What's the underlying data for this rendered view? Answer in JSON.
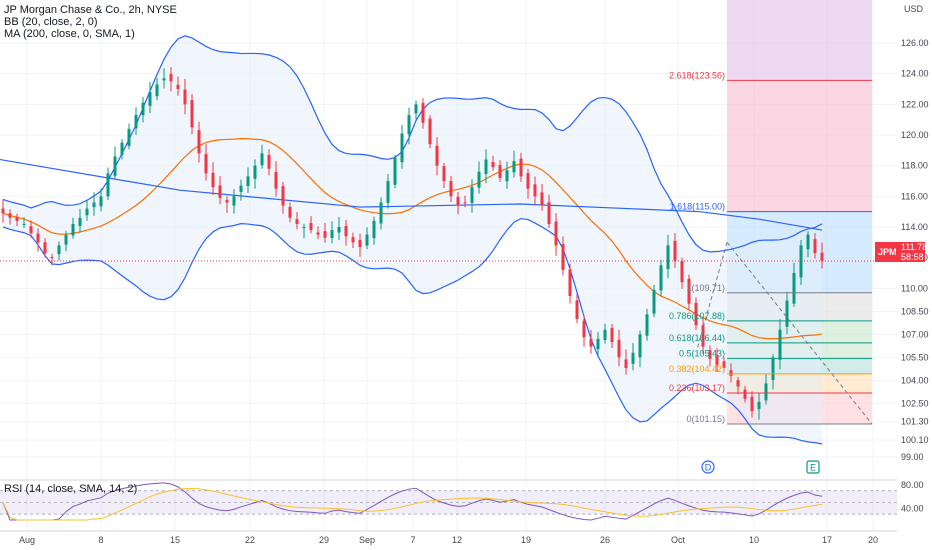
{
  "header": {
    "title": "JP Morgan Chase & Co., 2h, NYSE",
    "indicators": [
      "BB (20, close, 2, 0)",
      "MA (200, close, 0, SMA, 1)"
    ]
  },
  "rsi": {
    "label": "RSI (14, close, SMA, 14, 2)",
    "ticks": [
      "80.00",
      "40.00"
    ],
    "range": [
      20,
      85
    ]
  },
  "price_badge": {
    "symbol": "JPM",
    "value": "111.78",
    "time": "58:58",
    "color": "#f23645"
  },
  "colors": {
    "up": "#089981",
    "down": "#f23645",
    "bb": "#2962ff",
    "bb_fill": "#e3effa",
    "ma": "#2962ff",
    "basis": "#ff6d00",
    "rsi": "#7e57c2",
    "rsi_ma": "#fbc02d"
  },
  "chart_data": {
    "type": "candlestick",
    "currency": "USD",
    "yaxis_ticks": [
      "126.00",
      "124.00",
      "122.00",
      "120.00",
      "118.00",
      "116.00",
      "114.00",
      "112.00",
      "110.00",
      "108.50",
      "107.00",
      "105.50",
      "104.00",
      "102.50",
      "101.30",
      "100.10",
      "99.00"
    ],
    "xaxis_ticks": [
      "Aug",
      "8",
      "15",
      "22",
      "29",
      "Sep",
      "7",
      "12",
      "19",
      "26",
      "Oct",
      "10",
      "17",
      "20"
    ],
    "fibonacci": [
      {
        "label": "2.618(123.56)",
        "level": 123.56,
        "color": "#f23645"
      },
      {
        "label": "1.618(115.00)",
        "level": 115.0,
        "color": "#2962ff"
      },
      {
        "label": "1(109.71)",
        "level": 109.71,
        "color": "#787b86"
      },
      {
        "label": "0.786(107.88)",
        "level": 107.88,
        "color": "#089981"
      },
      {
        "label": "0.618(106.44)",
        "level": 106.44,
        "color": "#089981"
      },
      {
        "label": "0.5(105.43)",
        "level": 105.43,
        "color": "#089981"
      },
      {
        "label": "0.382(104.42)",
        "level": 104.42,
        "color": "#ff9800"
      },
      {
        "label": "0.236(103.17)",
        "level": 103.17,
        "color": "#f23645"
      },
      {
        "label": "0(101.15)",
        "level": 101.15,
        "color": "#787b86"
      }
    ],
    "markers": [
      {
        "label": "D",
        "color": "#2962ff"
      },
      {
        "label": "E",
        "color": "#089981"
      }
    ],
    "close_series": [
      114.9,
      114.6,
      114.4,
      114.2,
      113.6,
      113.0,
      112.3,
      112.0,
      112.8,
      113.5,
      114.2,
      114.6,
      115.2,
      115.6,
      116.0,
      117.5,
      118.6,
      119.5,
      120.4,
      121.3,
      122.1,
      122.8,
      123.3,
      123.7,
      123.5,
      123.0,
      122.0,
      120.5,
      118.8,
      117.5,
      116.6,
      115.9,
      115.6,
      116.0,
      116.7,
      117.3,
      118.0,
      118.8,
      117.8,
      116.5,
      115.4,
      114.6,
      114.2,
      114.0,
      113.8,
      113.5,
      113.3,
      113.8,
      114.0,
      113.4,
      113.0,
      112.7,
      113.5,
      114.4,
      115.6,
      117.0,
      118.5,
      120.1,
      121.3,
      122.0,
      120.8,
      119.4,
      118.0,
      117.0,
      116.0,
      115.4,
      115.6,
      116.6,
      117.6,
      118.4,
      117.9,
      117.2,
      117.7,
      118.3,
      117.3,
      116.5,
      116.0,
      115.4,
      114.2,
      112.8,
      111.2,
      109.5,
      108.0,
      106.8,
      106.2,
      106.7,
      107.3,
      106.5,
      105.5,
      104.8,
      105.8,
      107.0,
      108.3,
      109.9,
      111.5,
      112.8,
      111.8,
      110.4,
      109.0,
      107.6,
      106.2,
      105.4,
      105.0,
      104.8,
      104.3,
      103.6,
      102.8,
      102.0,
      102.6,
      103.8,
      105.5,
      107.3,
      109.2,
      111.0,
      112.8,
      113.5,
      112.3,
      111.8
    ]
  }
}
